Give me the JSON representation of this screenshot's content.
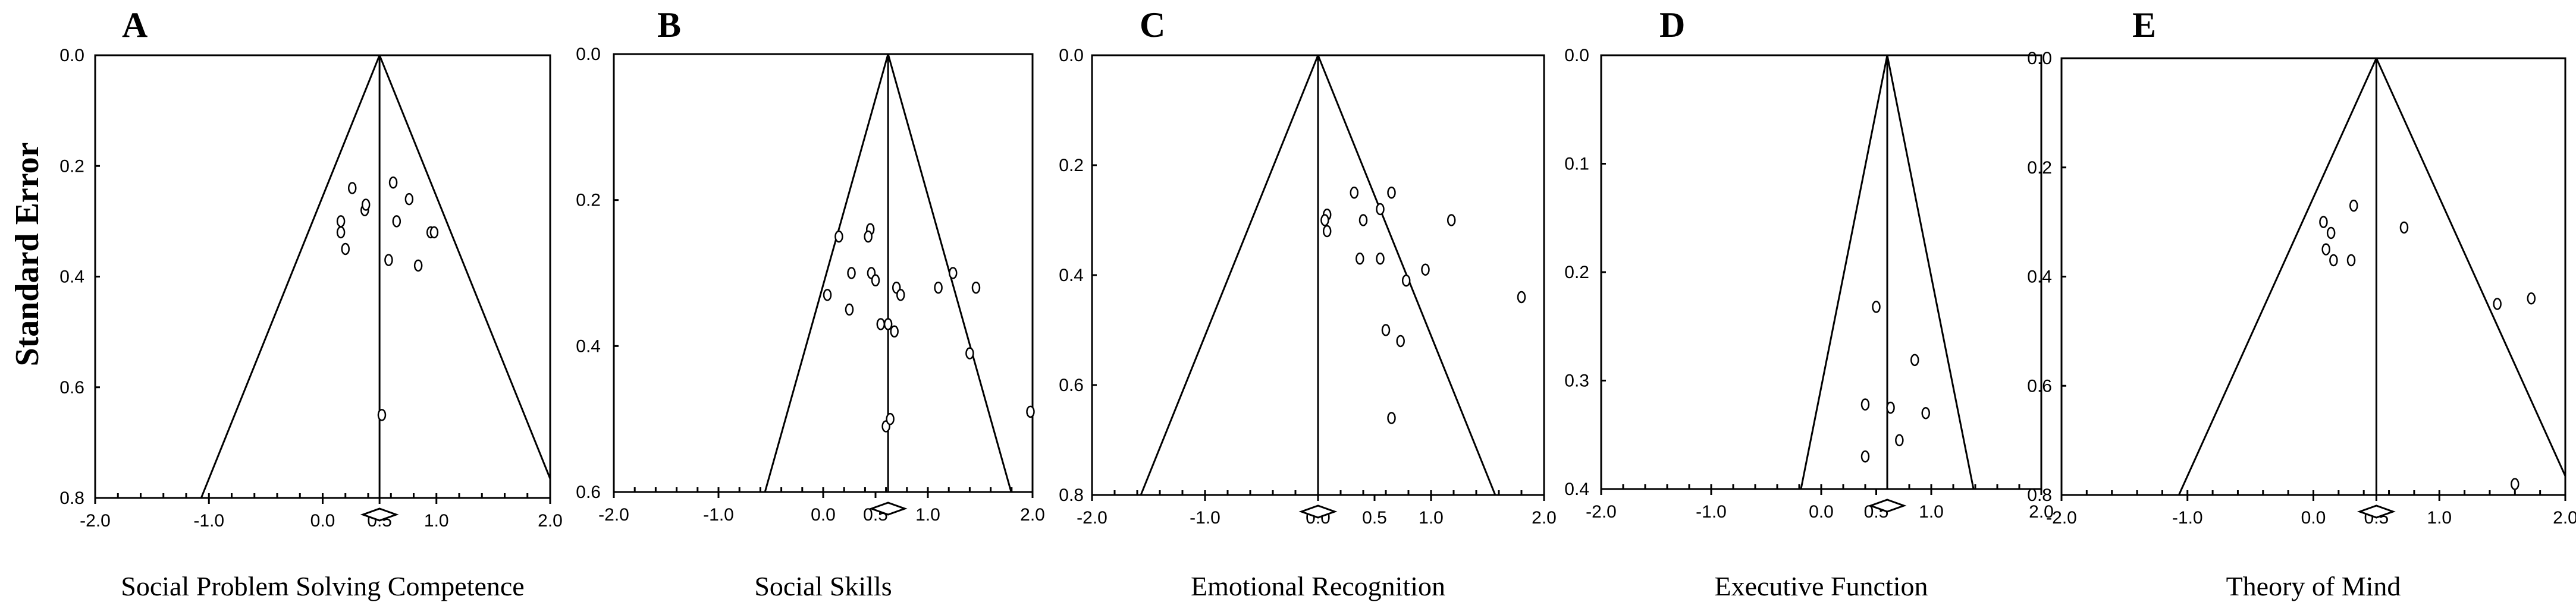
{
  "ylabel": "Standard Error",
  "chart_data": [
    {
      "type": "scatter",
      "panel": "A",
      "xlabel": "Social Problem Solving Competence",
      "xlim": [
        -2.0,
        2.0
      ],
      "ylim": [
        0.0,
        0.8
      ],
      "x_ticks": [
        "-2.0",
        "-1.0",
        "0.0",
        "0.5",
        "1.0",
        "2.0"
      ],
      "y_ticks": [
        "0.0",
        "0.2",
        "0.4",
        "0.6",
        "0.8"
      ],
      "y_tick_values": [
        0.0,
        0.2,
        0.4,
        0.6,
        0.8
      ],
      "pooled_effect": 0.5,
      "points": [
        [
          0.26,
          0.24
        ],
        [
          0.37,
          0.28
        ],
        [
          0.38,
          0.27
        ],
        [
          0.16,
          0.3
        ],
        [
          0.16,
          0.32
        ],
        [
          0.2,
          0.35
        ],
        [
          0.62,
          0.23
        ],
        [
          0.65,
          0.3
        ],
        [
          0.76,
          0.26
        ],
        [
          0.95,
          0.32
        ],
        [
          0.98,
          0.32
        ],
        [
          0.58,
          0.37
        ],
        [
          0.84,
          0.38
        ],
        [
          0.52,
          0.65
        ]
      ]
    },
    {
      "type": "scatter",
      "panel": "B",
      "xlabel": "Social Skills",
      "xlim": [
        -2.0,
        2.0
      ],
      "ylim": [
        0.0,
        0.6
      ],
      "x_ticks": [
        "-2.0",
        "-1.0",
        "0.0",
        "0.5",
        "1.0",
        "2.0"
      ],
      "y_ticks": [
        "0.0",
        "0.2",
        "0.4",
        "0.6"
      ],
      "y_tick_values": [
        0.0,
        0.2,
        0.4,
        0.6
      ],
      "pooled_effect": 0.62,
      "points": [
        [
          0.15,
          0.25
        ],
        [
          0.45,
          0.24
        ],
        [
          0.43,
          0.25
        ],
        [
          0.27,
          0.3
        ],
        [
          0.46,
          0.3
        ],
        [
          0.5,
          0.31
        ],
        [
          0.04,
          0.33
        ],
        [
          0.25,
          0.35
        ],
        [
          0.7,
          0.32
        ],
        [
          0.74,
          0.33
        ],
        [
          1.1,
          0.32
        ],
        [
          1.24,
          0.3
        ],
        [
          1.46,
          0.32
        ],
        [
          0.55,
          0.37
        ],
        [
          0.62,
          0.37
        ],
        [
          0.68,
          0.38
        ],
        [
          1.4,
          0.41
        ],
        [
          0.6,
          0.51
        ],
        [
          0.64,
          0.5
        ],
        [
          1.98,
          0.49
        ]
      ]
    },
    {
      "type": "scatter",
      "panel": "C",
      "xlabel": "Emotional Recognition",
      "xlim": [
        -2.0,
        2.0
      ],
      "ylim": [
        0.0,
        0.8
      ],
      "x_ticks": [
        "-2.0",
        "-1.0",
        "0.0",
        "0.5",
        "1.0",
        "2.0"
      ],
      "y_ticks": [
        "0.0",
        "0.2",
        "0.4",
        "0.6",
        "0.8"
      ],
      "y_tick_values": [
        0.0,
        0.2,
        0.4,
        0.6,
        0.8
      ],
      "pooled_effect": 0.0,
      "points": [
        [
          0.08,
          0.29
        ],
        [
          0.06,
          0.3
        ],
        [
          0.08,
          0.32
        ],
        [
          0.32,
          0.25
        ],
        [
          0.4,
          0.3
        ],
        [
          0.55,
          0.28
        ],
        [
          0.65,
          0.25
        ],
        [
          1.18,
          0.3
        ],
        [
          0.37,
          0.37
        ],
        [
          0.55,
          0.37
        ],
        [
          0.95,
          0.39
        ],
        [
          0.78,
          0.41
        ],
        [
          1.8,
          0.44
        ],
        [
          0.6,
          0.5
        ],
        [
          0.73,
          0.52
        ],
        [
          0.65,
          0.66
        ]
      ]
    },
    {
      "type": "scatter",
      "panel": "D",
      "xlabel": "Executive Function",
      "xlim": [
        -2.0,
        2.0
      ],
      "ylim": [
        0.0,
        0.4
      ],
      "x_ticks": [
        "-2.0",
        "-1.0",
        "0.0",
        "0.5",
        "1.0",
        "2.0"
      ],
      "y_ticks": [
        "0.0",
        "0.1",
        "0.2",
        "0.3",
        "0.4"
      ],
      "y_tick_values": [
        0.0,
        0.1,
        0.2,
        0.3,
        0.4
      ],
      "pooled_effect": 0.6,
      "points": [
        [
          0.5,
          0.232
        ],
        [
          0.85,
          0.281
        ],
        [
          0.4,
          0.322
        ],
        [
          0.63,
          0.325
        ],
        [
          0.95,
          0.33
        ],
        [
          0.71,
          0.355
        ],
        [
          0.4,
          0.37
        ]
      ]
    },
    {
      "type": "scatter",
      "panel": "E",
      "xlabel": "Theory of Mind",
      "xlim": [
        -2.0,
        2.0
      ],
      "ylim": [
        0.0,
        0.8
      ],
      "x_ticks": [
        "-2.0",
        "-1.0",
        "0.0",
        "0.5",
        "1.0",
        "2.0"
      ],
      "y_ticks": [
        "0.0",
        "0.2",
        "0.4",
        "0.6",
        "0.8"
      ],
      "y_tick_values": [
        0.0,
        0.2,
        0.4,
        0.6,
        0.8
      ],
      "pooled_effect": 0.5,
      "points": [
        [
          0.08,
          0.3
        ],
        [
          0.14,
          0.32
        ],
        [
          0.1,
          0.35
        ],
        [
          0.16,
          0.37
        ],
        [
          0.32,
          0.27
        ],
        [
          0.3,
          0.37
        ],
        [
          0.72,
          0.31
        ],
        [
          1.46,
          0.45
        ],
        [
          1.73,
          0.44
        ],
        [
          1.6,
          0.78
        ]
      ]
    }
  ]
}
